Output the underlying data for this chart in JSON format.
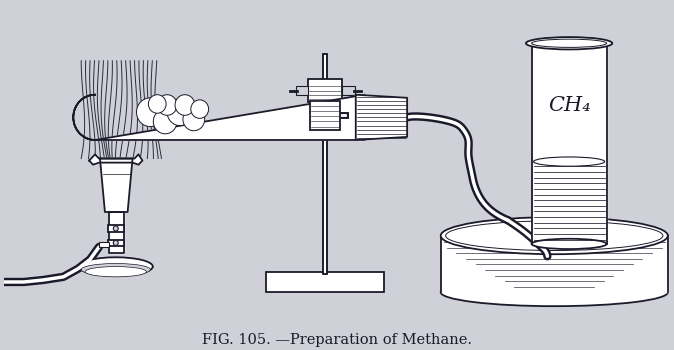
{
  "bg_color": "#d0d0d8",
  "ink_color": "#1a1a2a",
  "title": "FIG. 105. —Preparation of Methane.",
  "title_fontsize": 10.5,
  "ch4_label": "CH₄",
  "fig_width": 6.74,
  "fig_height": 3.5,
  "dpi": 100
}
